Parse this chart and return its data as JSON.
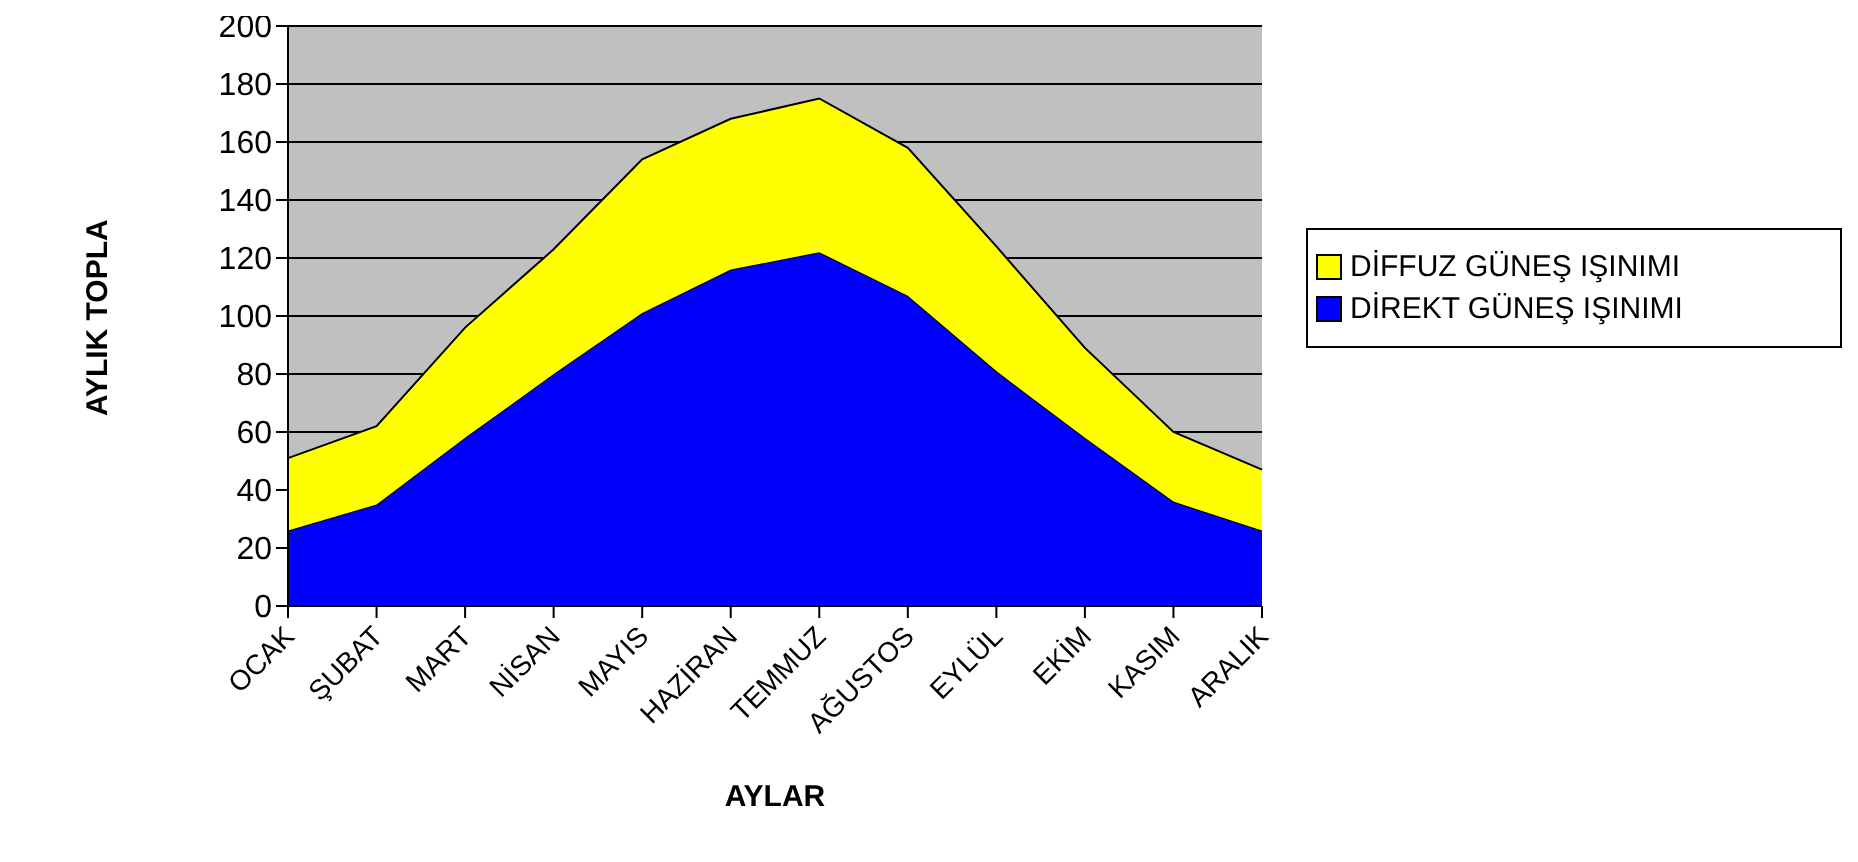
{
  "chart_data": {
    "type": "area",
    "stacked": true,
    "xlabel": "AYLAR",
    "ylabel": "AYLIK TOPLA",
    "categories": [
      "OCAK",
      "ŞUBAT",
      "MART",
      "NİSAN",
      "MAYIS",
      "HAZİRAN",
      "TEMMUZ",
      "AĞUSTOS",
      "EYLÜL",
      "EKİM",
      "KASIM",
      "ARALIK"
    ],
    "series": [
      {
        "name": "DİREKT GÜNEŞ IŞINIMI",
        "color": "#0000ff",
        "values": [
          26,
          35,
          58,
          80,
          101,
          116,
          122,
          107,
          81,
          58,
          36,
          26
        ]
      },
      {
        "name": "DİFFUZ GÜNEŞ IŞINIMI",
        "color": "#ffff00",
        "values": [
          25,
          27,
          38,
          43,
          53,
          52,
          53,
          51,
          43,
          31,
          24,
          21
        ]
      }
    ],
    "ylim": [
      0,
      200
    ],
    "yticks": [
      0,
      20,
      40,
      60,
      80,
      100,
      120,
      140,
      160,
      180,
      200
    ],
    "grid": "y",
    "legend": "right"
  }
}
